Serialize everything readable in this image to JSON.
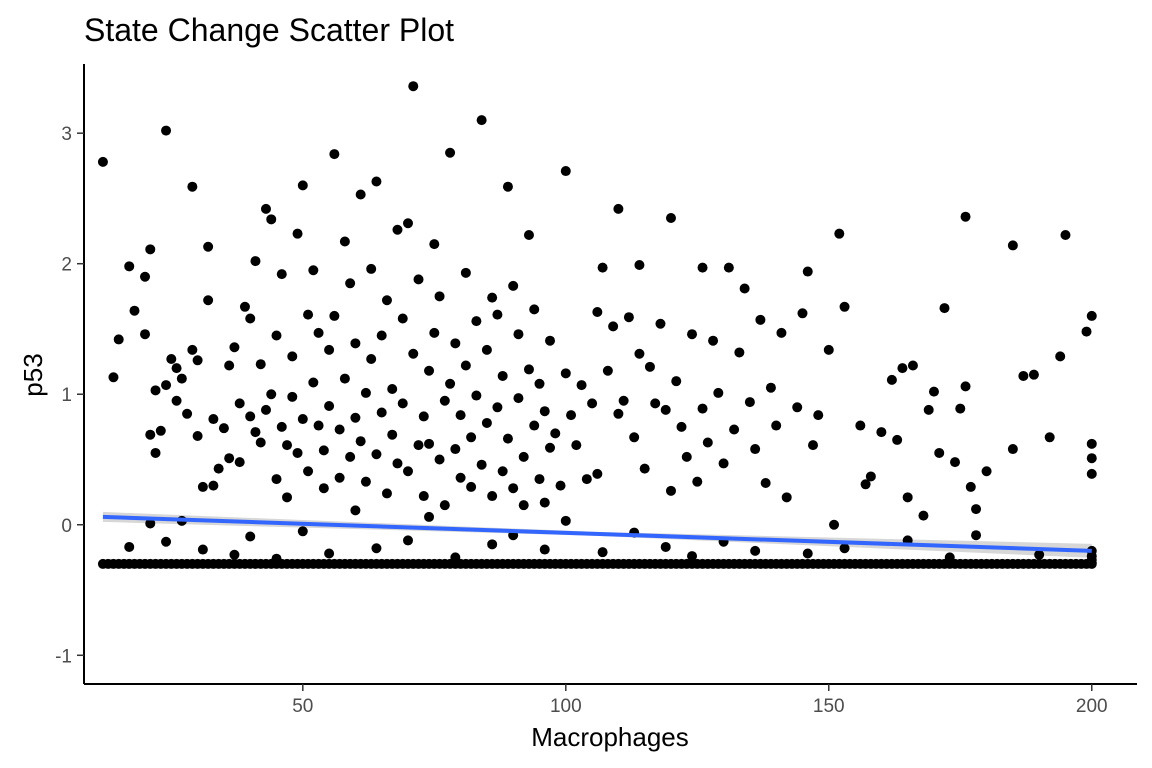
{
  "chart_data": {
    "type": "scatter",
    "title": "State Change Scatter Plot",
    "xlabel": "Macrophages",
    "ylabel": "p53",
    "xlim": [
      8.4,
      208.6
    ],
    "ylim": [
      -1.22,
      3.53
    ],
    "xticks": [
      50,
      100,
      150,
      200
    ],
    "xtick_labels": [
      "50",
      "100",
      "150",
      "200"
    ],
    "yticks": [
      -1,
      0,
      1,
      2,
      3
    ],
    "ytick_labels": [
      "-1",
      "0",
      "1",
      "2",
      "3"
    ],
    "grid": false,
    "legend": "none",
    "point_color": "#000000",
    "trend_color": "#3366ff",
    "confidence_band_color": "#bdbdbd",
    "trend_line": {
      "x": [
        12,
        200
      ],
      "y": [
        0.06,
        -0.2
      ]
    },
    "series": [
      {
        "points": [
          [
            12,
            2.78
          ],
          [
            14,
            1.13
          ],
          [
            15,
            1.42
          ],
          [
            17,
            1.98
          ],
          [
            18,
            1.64
          ],
          [
            20,
            1.46
          ],
          [
            20,
            1.9
          ],
          [
            21,
            2.11
          ],
          [
            21,
            0.69
          ],
          [
            22,
            1.03
          ],
          [
            22,
            0.55
          ],
          [
            23,
            0.72
          ],
          [
            24,
            1.07
          ],
          [
            24,
            3.02
          ],
          [
            25,
            1.27
          ],
          [
            26,
            1.2
          ],
          [
            26,
            0.95
          ],
          [
            27,
            1.12
          ],
          [
            28,
            0.85
          ],
          [
            29,
            2.59
          ],
          [
            29,
            1.34
          ],
          [
            30,
            0.68
          ],
          [
            30,
            1.26
          ],
          [
            31,
            0.29
          ],
          [
            32,
            1.72
          ],
          [
            32,
            2.13
          ],
          [
            33,
            0.81
          ],
          [
            33,
            0.3
          ],
          [
            34,
            0.43
          ],
          [
            35,
            0.74
          ],
          [
            36,
            0.51
          ],
          [
            36,
            1.22
          ],
          [
            37,
            1.36
          ],
          [
            38,
            0.93
          ],
          [
            38,
            0.48
          ],
          [
            39,
            1.67
          ],
          [
            40,
            0.83
          ],
          [
            40,
            1.58
          ],
          [
            41,
            2.02
          ],
          [
            41,
            0.71
          ],
          [
            42,
            1.23
          ],
          [
            42,
            0.63
          ],
          [
            43,
            2.42
          ],
          [
            43,
            0.88
          ],
          [
            44,
            1.0
          ],
          [
            44,
            2.34
          ],
          [
            45,
            0.35
          ],
          [
            45,
            1.45
          ],
          [
            46,
            0.75
          ],
          [
            46,
            1.92
          ],
          [
            47,
            0.61
          ],
          [
            47,
            0.21
          ],
          [
            48,
            1.29
          ],
          [
            48,
            0.98
          ],
          [
            49,
            2.23
          ],
          [
            49,
            0.55
          ],
          [
            50,
            0.81
          ],
          [
            50,
            2.6
          ],
          [
            51,
            0.41
          ],
          [
            51,
            1.61
          ],
          [
            52,
            1.95
          ],
          [
            52,
            1.09
          ],
          [
            53,
            0.76
          ],
          [
            53,
            1.47
          ],
          [
            54,
            0.57
          ],
          [
            54,
            0.28
          ],
          [
            55,
            1.34
          ],
          [
            55,
            0.91
          ],
          [
            56,
            2.84
          ],
          [
            56,
            1.6
          ],
          [
            57,
            0.73
          ],
          [
            57,
            0.36
          ],
          [
            58,
            2.17
          ],
          [
            58,
            1.12
          ],
          [
            59,
            0.52
          ],
          [
            59,
            1.85
          ],
          [
            60,
            0.82
          ],
          [
            60,
            1.39
          ],
          [
            61,
            2.53
          ],
          [
            61,
            0.64
          ],
          [
            62,
            0.33
          ],
          [
            62,
            1.01
          ],
          [
            63,
            1.96
          ],
          [
            63,
            1.27
          ],
          [
            64,
            0.54
          ],
          [
            64,
            2.63
          ],
          [
            65,
            0.86
          ],
          [
            65,
            1.45
          ],
          [
            66,
            0.24
          ],
          [
            66,
            1.72
          ],
          [
            67,
            0.69
          ],
          [
            67,
            1.04
          ],
          [
            68,
            2.26
          ],
          [
            68,
            0.47
          ],
          [
            69,
            1.58
          ],
          [
            69,
            0.93
          ],
          [
            70,
            2.31
          ],
          [
            70,
            0.41
          ],
          [
            71,
            1.31
          ],
          [
            71,
            3.36
          ],
          [
            72,
            0.61
          ],
          [
            72,
            1.88
          ],
          [
            73,
            0.83
          ],
          [
            73,
            0.22
          ],
          [
            74,
            1.18
          ],
          [
            74,
            0.62
          ],
          [
            75,
            2.15
          ],
          [
            75,
            1.47
          ],
          [
            76,
            0.5
          ],
          [
            76,
            1.75
          ],
          [
            77,
            0.95
          ],
          [
            77,
            0.15
          ],
          [
            78,
            2.85
          ],
          [
            78,
            1.08
          ],
          [
            79,
            0.58
          ],
          [
            79,
            1.39
          ],
          [
            80,
            0.84
          ],
          [
            80,
            0.36
          ],
          [
            81,
            1.22
          ],
          [
            81,
            1.93
          ],
          [
            82,
            0.67
          ],
          [
            82,
            0.29
          ],
          [
            83,
            1.56
          ],
          [
            83,
            0.99
          ],
          [
            84,
            3.1
          ],
          [
            84,
            0.46
          ],
          [
            85,
            1.34
          ],
          [
            85,
            0.78
          ],
          [
            86,
            1.74
          ],
          [
            86,
            0.22
          ],
          [
            87,
            0.9
          ],
          [
            87,
            1.61
          ],
          [
            88,
            0.41
          ],
          [
            88,
            1.14
          ],
          [
            89,
            2.59
          ],
          [
            89,
            0.66
          ],
          [
            90,
            1.83
          ],
          [
            90,
            0.28
          ],
          [
            91,
            0.97
          ],
          [
            91,
            1.46
          ],
          [
            92,
            0.52
          ],
          [
            92,
            0.15
          ],
          [
            93,
            1.19
          ],
          [
            93,
            2.22
          ],
          [
            94,
            0.76
          ],
          [
            94,
            1.65
          ],
          [
            95,
            0.35
          ],
          [
            95,
            1.08
          ],
          [
            96,
            0.87
          ],
          [
            96,
            0.17
          ],
          [
            97,
            1.41
          ],
          [
            97,
            0.59
          ],
          [
            98,
            0.7
          ],
          [
            99,
            0.3
          ],
          [
            100,
            1.16
          ],
          [
            100,
            2.71
          ],
          [
            101,
            0.84
          ],
          [
            102,
            0.61
          ],
          [
            103,
            1.07
          ],
          [
            104,
            0.35
          ],
          [
            105,
            0.93
          ],
          [
            106,
            1.63
          ],
          [
            106,
            0.39
          ],
          [
            107,
            1.97
          ],
          [
            108,
            1.18
          ],
          [
            109,
            1.52
          ],
          [
            110,
            2.42
          ],
          [
            110,
            0.85
          ],
          [
            111,
            0.95
          ],
          [
            112,
            1.59
          ],
          [
            113,
            0.67
          ],
          [
            114,
            1.31
          ],
          [
            114,
            1.99
          ],
          [
            115,
            0.43
          ],
          [
            116,
            1.21
          ],
          [
            117,
            0.93
          ],
          [
            118,
            1.54
          ],
          [
            119,
            0.88
          ],
          [
            120,
            2.35
          ],
          [
            120,
            0.26
          ],
          [
            121,
            1.1
          ],
          [
            122,
            0.75
          ],
          [
            123,
            0.52
          ],
          [
            124,
            1.46
          ],
          [
            125,
            0.33
          ],
          [
            126,
            1.97
          ],
          [
            126,
            0.89
          ],
          [
            127,
            0.63
          ],
          [
            128,
            1.41
          ],
          [
            129,
            1.01
          ],
          [
            130,
            0.47
          ],
          [
            131,
            1.97
          ],
          [
            132,
            0.73
          ],
          [
            133,
            1.32
          ],
          [
            134,
            1.81
          ],
          [
            135,
            0.94
          ],
          [
            136,
            0.58
          ],
          [
            137,
            1.57
          ],
          [
            138,
            0.32
          ],
          [
            139,
            1.05
          ],
          [
            140,
            0.76
          ],
          [
            141,
            1.47
          ],
          [
            142,
            0.21
          ],
          [
            144,
            0.9
          ],
          [
            145,
            1.62
          ],
          [
            146,
            1.94
          ],
          [
            147,
            0.61
          ],
          [
            148,
            0.84
          ],
          [
            150,
            1.34
          ],
          [
            151,
            0.0
          ],
          [
            152,
            2.23
          ],
          [
            153,
            1.67
          ],
          [
            156,
            0.76
          ],
          [
            157,
            0.31
          ],
          [
            158,
            0.37
          ],
          [
            160,
            0.71
          ],
          [
            162,
            1.11
          ],
          [
            163,
            0.65
          ],
          [
            164,
            1.2
          ],
          [
            165,
            0.21
          ],
          [
            166,
            1.22
          ],
          [
            168,
            0.07
          ],
          [
            169,
            0.88
          ],
          [
            170,
            1.02
          ],
          [
            171,
            0.55
          ],
          [
            172,
            1.66
          ],
          [
            174,
            0.48
          ],
          [
            175,
            0.89
          ],
          [
            176,
            2.36
          ],
          [
            176,
            1.06
          ],
          [
            177,
            0.29
          ],
          [
            178,
            0.12
          ],
          [
            180,
            0.41
          ],
          [
            185,
            0.58
          ],
          [
            185,
            2.14
          ],
          [
            187,
            1.14
          ],
          [
            189,
            1.15
          ],
          [
            192,
            0.67
          ],
          [
            194,
            1.29
          ],
          [
            195,
            2.22
          ],
          [
            199,
            1.48
          ],
          [
            200,
            1.6
          ],
          [
            200,
            0.62
          ],
          [
            200,
            0.51
          ],
          [
            200,
            0.39
          ],
          [
            200,
            -0.2
          ],
          [
            200,
            -0.24
          ],
          [
            200,
            -0.27
          ],
          [
            200,
            -0.29
          ],
          [
            17,
            -0.17
          ],
          [
            21,
            0.01
          ],
          [
            24,
            -0.13
          ],
          [
            27,
            0.03
          ],
          [
            31,
            -0.19
          ],
          [
            37,
            -0.23
          ],
          [
            40,
            -0.09
          ],
          [
            45,
            -0.26
          ],
          [
            50,
            -0.05
          ],
          [
            55,
            -0.22
          ],
          [
            60,
            0.11
          ],
          [
            64,
            -0.18
          ],
          [
            70,
            -0.12
          ],
          [
            74,
            0.06
          ],
          [
            79,
            -0.25
          ],
          [
            86,
            -0.15
          ],
          [
            90,
            -0.08
          ],
          [
            96,
            -0.19
          ],
          [
            100,
            0.03
          ],
          [
            107,
            -0.21
          ],
          [
            113,
            -0.06
          ],
          [
            119,
            -0.17
          ],
          [
            124,
            -0.24
          ],
          [
            130,
            -0.13
          ],
          [
            136,
            -0.2
          ],
          [
            146,
            -0.22
          ],
          [
            153,
            -0.18
          ],
          [
            165,
            -0.12
          ],
          [
            173,
            -0.25
          ],
          [
            178,
            -0.08
          ],
          [
            190,
            -0.23
          ]
        ],
        "floor_points": {
          "x_from": 12,
          "x_to": 200,
          "step": 1,
          "y": -0.3
        }
      }
    ]
  }
}
